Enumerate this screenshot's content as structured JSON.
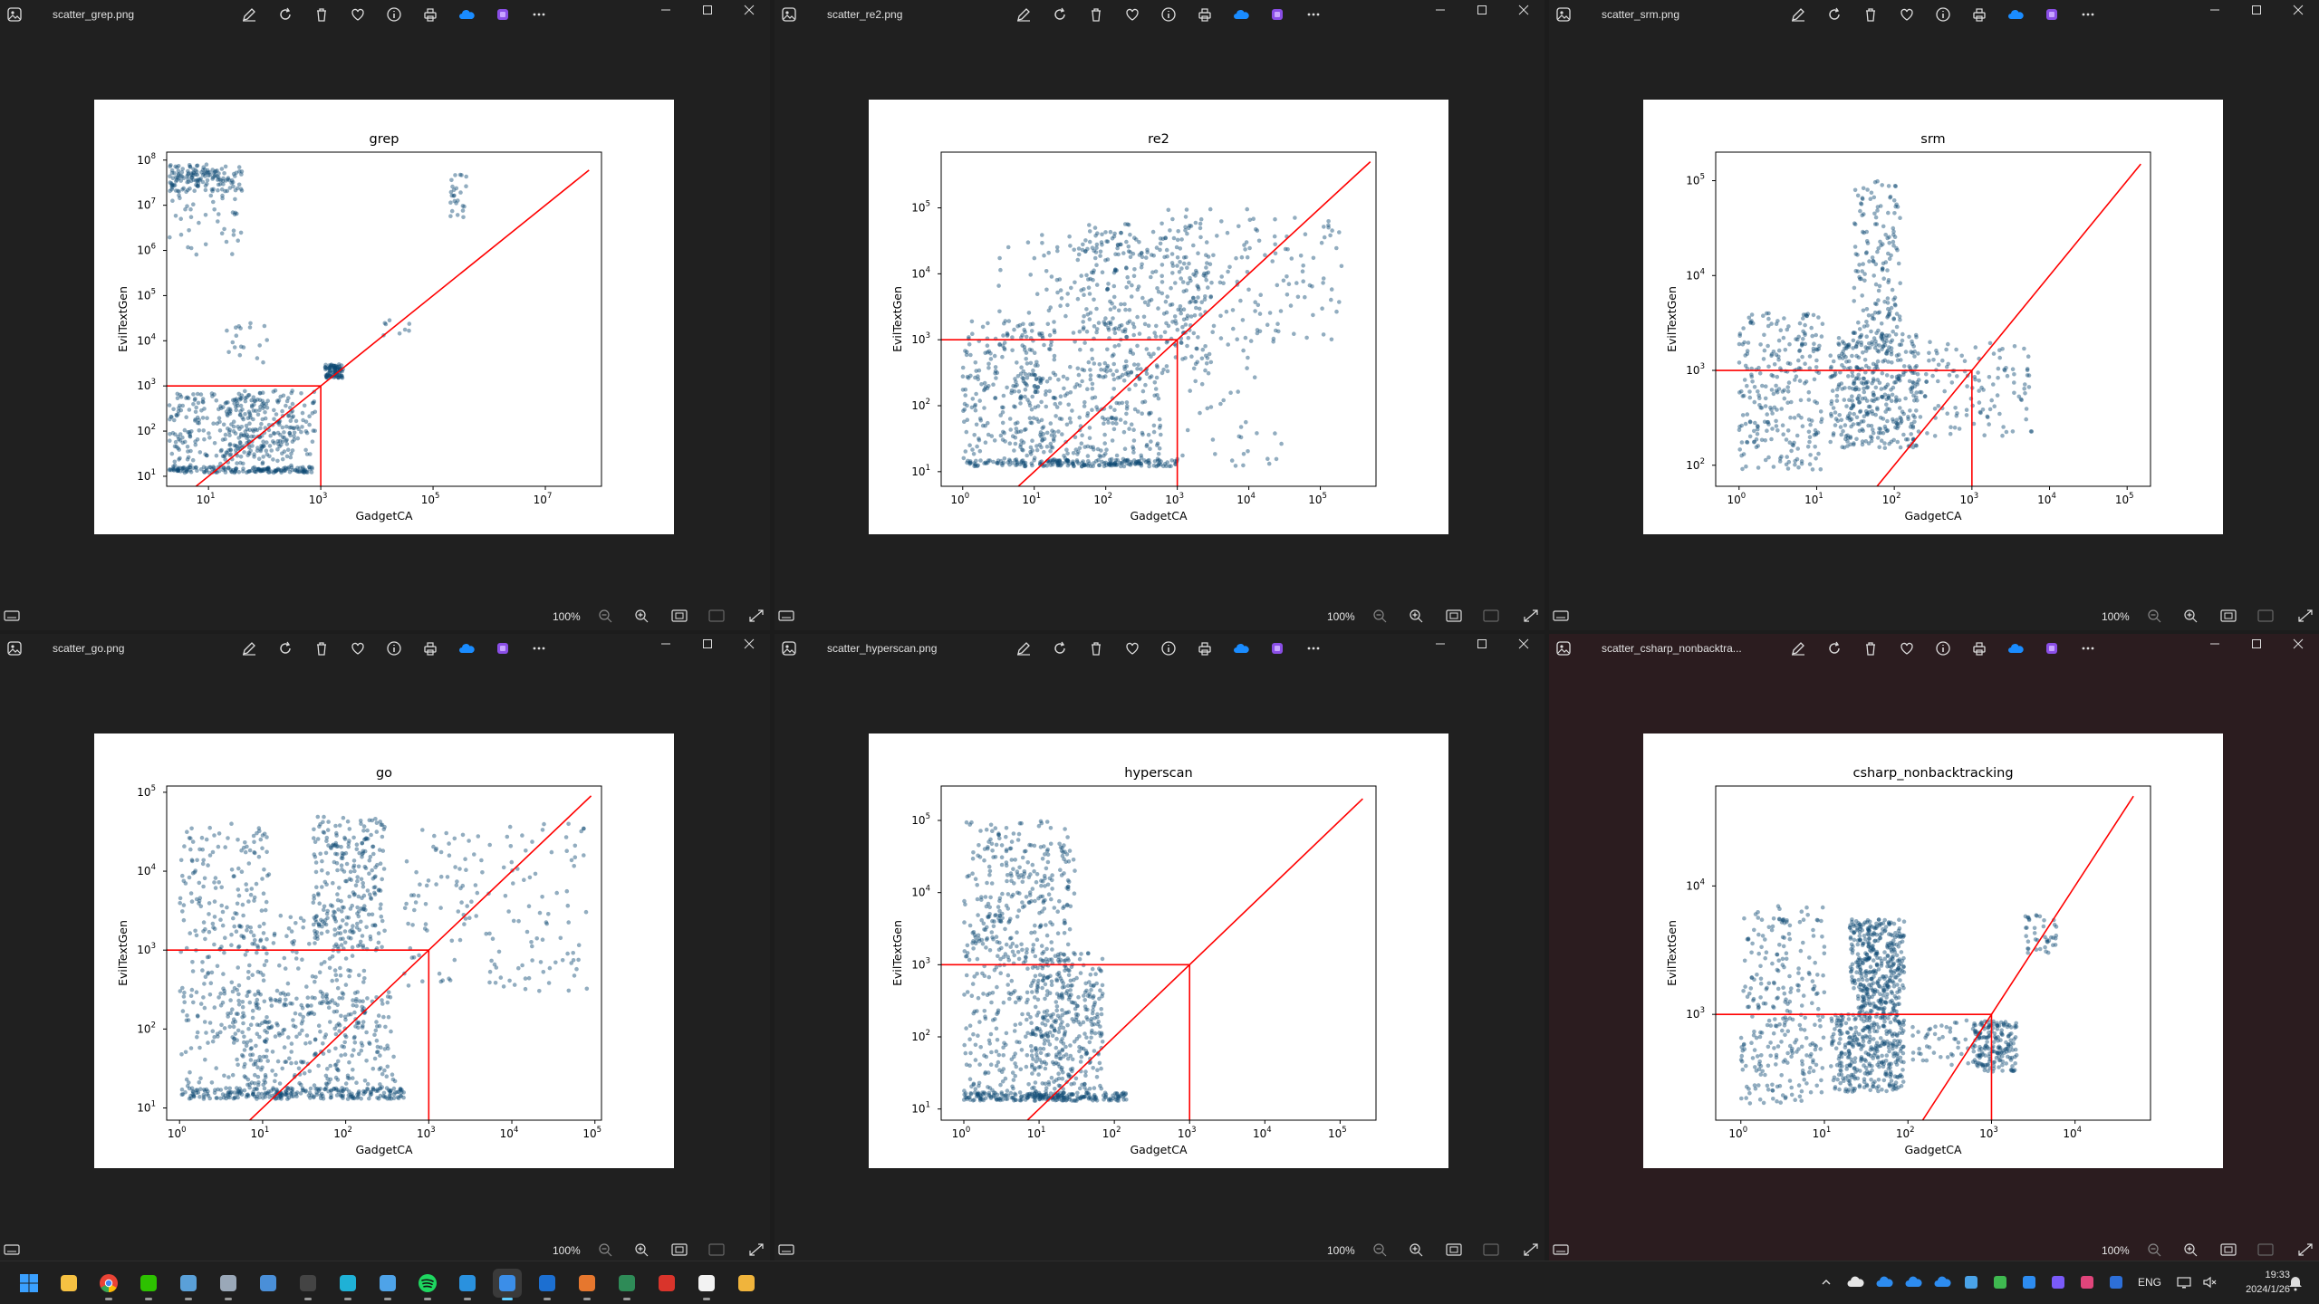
{
  "windows": [
    {
      "file": "scatter_grep.png",
      "zoom": "100%",
      "chart": {
        "type": "scatter",
        "title": "grep",
        "xlabel": "GadgetCA",
        "ylabel": "EvilTextGen",
        "xscale": "log",
        "yscale": "log",
        "xlim": [
          1.8,
          100000000
        ],
        "ylim": [
          6,
          150000000
        ],
        "xticks": [
          {
            "v": 10,
            "e": "1"
          },
          {
            "v": 1000,
            "e": "3"
          },
          {
            "v": 100000,
            "e": "5"
          },
          {
            "v": 10000000,
            "e": "7"
          }
        ],
        "yticks": [
          {
            "v": 10,
            "e": "1"
          },
          {
            "v": 100,
            "e": "2"
          },
          {
            "v": 1000,
            "e": "3"
          },
          {
            "v": 10000,
            "e": "4"
          },
          {
            "v": 100000,
            "e": "5"
          },
          {
            "v": 1000000,
            "e": "6"
          },
          {
            "v": 10000000,
            "e": "7"
          },
          {
            "v": 100000000,
            "e": "8"
          }
        ],
        "diagonal": [
          [
            4,
            4
          ],
          [
            60000000,
            60000000
          ]
        ],
        "threshold": 1000,
        "clusters": [
          {
            "x": [
              2,
              700
            ],
            "y": [
              12,
              16
            ],
            "n": 160
          },
          {
            "x": [
              2,
              300
            ],
            "y": [
              16,
              700
            ],
            "n": 260
          },
          {
            "x": [
              20,
              800
            ],
            "y": [
              30,
              800
            ],
            "n": 140
          },
          {
            "x": [
              2,
              40
            ],
            "y": [
              20000000,
              80000000
            ],
            "n": 150
          },
          {
            "x": [
              2,
              40
            ],
            "y": [
              800000,
              20000000
            ],
            "n": 40
          },
          {
            "x": [
              1200,
              2500
            ],
            "y": [
              1500,
              3000
            ],
            "n": 90
          },
          {
            "x": [
              20,
              150
            ],
            "y": [
              3000,
              30000
            ],
            "n": 18
          },
          {
            "x": [
              200000,
              400000
            ],
            "y": [
              5000000,
              60000000
            ],
            "n": 25
          },
          {
            "x": [
              10000,
              40000
            ],
            "y": [
              10000,
              30000
            ],
            "n": 8
          }
        ]
      }
    },
    {
      "file": "scatter_re2.png",
      "zoom": "100%",
      "chart": {
        "type": "scatter",
        "title": "re2",
        "xlabel": "GadgetCA",
        "ylabel": "EvilTextGen",
        "xscale": "log",
        "yscale": "log",
        "xlim": [
          0.5,
          600000
        ],
        "ylim": [
          6,
          700000
        ],
        "xticks": [
          {
            "v": 1,
            "e": "0"
          },
          {
            "v": 10,
            "e": "1"
          },
          {
            "v": 100,
            "e": "2"
          },
          {
            "v": 1000,
            "e": "3"
          },
          {
            "v": 10000,
            "e": "4"
          },
          {
            "v": 100000,
            "e": "5"
          }
        ],
        "yticks": [
          {
            "v": 10,
            "e": "1"
          },
          {
            "v": 100,
            "e": "2"
          },
          {
            "v": 1000,
            "e": "3"
          },
          {
            "v": 10000,
            "e": "4"
          },
          {
            "v": 100000,
            "e": "5"
          }
        ],
        "diagonal": [
          [
            5,
            5
          ],
          [
            500000,
            500000
          ]
        ],
        "threshold": 1000,
        "clusters": [
          {
            "x": [
              1,
              1000
            ],
            "y": [
              12,
              15
            ],
            "n": 200
          },
          {
            "x": [
              1,
              20
            ],
            "y": [
              15,
              2000
            ],
            "n": 220
          },
          {
            "x": [
              5,
              600
            ],
            "y": [
              15,
              300
            ],
            "n": 220
          },
          {
            "x": [
              40,
              3000
            ],
            "y": [
              300,
              60000
            ],
            "n": 300
          },
          {
            "x": [
              3,
              300
            ],
            "y": [
              200,
              40000
            ],
            "n": 120
          },
          {
            "x": [
              500,
              200000
            ],
            "y": [
              1000,
              100000
            ],
            "n": 150
          },
          {
            "x": [
              1000,
              30000
            ],
            "y": [
              12,
              1000
            ],
            "n": 40
          }
        ]
      }
    },
    {
      "file": "scatter_srm.png",
      "zoom": "100%",
      "chart": {
        "type": "scatter",
        "title": "srm",
        "xlabel": "GadgetCA",
        "ylabel": "EvilTextGen",
        "xscale": "log",
        "yscale": "log",
        "xlim": [
          0.5,
          200000
        ],
        "ylim": [
          60,
          200000
        ],
        "xticks": [
          {
            "v": 1,
            "e": "0"
          },
          {
            "v": 10,
            "e": "1"
          },
          {
            "v": 100,
            "e": "2"
          },
          {
            "v": 1000,
            "e": "3"
          },
          {
            "v": 10000,
            "e": "4"
          },
          {
            "v": 100000,
            "e": "5"
          }
        ],
        "yticks": [
          {
            "v": 100,
            "e": "2"
          },
          {
            "v": 1000,
            "e": "3"
          },
          {
            "v": 10000,
            "e": "4"
          },
          {
            "v": 100000,
            "e": "5"
          }
        ],
        "diagonal": [
          [
            30,
            30
          ],
          [
            150000,
            150000
          ]
        ],
        "threshold": 1000,
        "clusters": [
          {
            "x": [
              1,
              12
            ],
            "y": [
              90,
              4000
            ],
            "n": 260
          },
          {
            "x": [
              15,
              200
            ],
            "y": [
              150,
              2500
            ],
            "n": 400
          },
          {
            "x": [
              30,
              120
            ],
            "y": [
              2000,
              100000
            ],
            "n": 150
          },
          {
            "x": [
              200,
              6000
            ],
            "y": [
              200,
              2000
            ],
            "n": 120
          }
        ]
      }
    },
    {
      "file": "scatter_go.png",
      "zoom": "100%",
      "chart": {
        "type": "scatter",
        "title": "go",
        "xlabel": "GadgetCA",
        "ylabel": "EvilTextGen",
        "xscale": "log",
        "yscale": "log",
        "xlim": [
          0.7,
          120000
        ],
        "ylim": [
          7,
          120000
        ],
        "xticks": [
          {
            "v": 1,
            "e": "0"
          },
          {
            "v": 10,
            "e": "1"
          },
          {
            "v": 100,
            "e": "2"
          },
          {
            "v": 1000,
            "e": "3"
          },
          {
            "v": 10000,
            "e": "4"
          },
          {
            "v": 100000,
            "e": "5"
          }
        ],
        "yticks": [
          {
            "v": 10,
            "e": "1"
          },
          {
            "v": 100,
            "e": "2"
          },
          {
            "v": 1000,
            "e": "3"
          },
          {
            "v": 10000,
            "e": "4"
          },
          {
            "v": 100000,
            "e": "5"
          }
        ],
        "diagonal": [
          [
            5,
            5
          ],
          [
            90000,
            90000
          ]
        ],
        "threshold": 1000,
        "clusters": [
          {
            "x": [
              1,
              500
            ],
            "y": [
              13,
              18
            ],
            "n": 260
          },
          {
            "x": [
              1,
              12
            ],
            "y": [
              15,
              40000
            ],
            "n": 320
          },
          {
            "x": [
              5,
              400
            ],
            "y": [
              18,
              300
            ],
            "n": 260
          },
          {
            "x": [
              40,
              300
            ],
            "y": [
              1000,
              50000
            ],
            "n": 250
          },
          {
            "x": [
              500,
              80000
            ],
            "y": [
              300,
              40000
            ],
            "n": 160
          },
          {
            "x": [
              10,
              200
            ],
            "y": [
              100,
              3000
            ],
            "n": 120
          }
        ]
      }
    },
    {
      "file": "scatter_hyperscan.png",
      "zoom": "100%",
      "chart": {
        "type": "scatter",
        "title": "hyperscan",
        "xlabel": "GadgetCA",
        "ylabel": "EvilTextGen",
        "xscale": "log",
        "yscale": "log",
        "xlim": [
          0.5,
          300000
        ],
        "ylim": [
          7,
          300000
        ],
        "xticks": [
          {
            "v": 1,
            "e": "0"
          },
          {
            "v": 10,
            "e": "1"
          },
          {
            "v": 100,
            "e": "2"
          },
          {
            "v": 1000,
            "e": "3"
          },
          {
            "v": 10000,
            "e": "4"
          },
          {
            "v": 100000,
            "e": "5"
          }
        ],
        "yticks": [
          {
            "v": 10,
            "e": "1"
          },
          {
            "v": 100,
            "e": "2"
          },
          {
            "v": 1000,
            "e": "3"
          },
          {
            "v": 10000,
            "e": "4"
          },
          {
            "v": 100000,
            "e": "5"
          }
        ],
        "diagonal": [
          [
            5,
            5
          ],
          [
            200000,
            200000
          ]
        ],
        "threshold": 1000,
        "clusters": [
          {
            "x": [
              1,
              150
            ],
            "y": [
              13,
              17
            ],
            "n": 220
          },
          {
            "x": [
              1,
              25
            ],
            "y": [
              15,
              100000
            ],
            "n": 450
          },
          {
            "x": [
              8,
              70
            ],
            "y": [
              15,
              1500
            ],
            "n": 300
          },
          {
            "x": [
              2,
              30
            ],
            "y": [
              1000,
              50000
            ],
            "n": 80
          }
        ]
      }
    },
    {
      "file": "scatter_csharp_nonbacktra...",
      "zoom": "100%",
      "chart": {
        "type": "scatter",
        "title": "csharp_nonbacktracking",
        "xlabel": "GadgetCA",
        "ylabel": "EvilTextGen",
        "xscale": "log",
        "yscale": "log",
        "xlim": [
          0.5,
          80000
        ],
        "ylim": [
          150,
          60000
        ],
        "xticks": [
          {
            "v": 1,
            "e": "0"
          },
          {
            "v": 10,
            "e": "1"
          },
          {
            "v": 100,
            "e": "2"
          },
          {
            "v": 1000,
            "e": "3"
          },
          {
            "v": 10000,
            "e": "4"
          }
        ],
        "yticks": [
          {
            "v": 1000,
            "e": "3"
          },
          {
            "v": 10000,
            "e": "4"
          }
        ],
        "diagonal": [
          [
            150,
            150
          ],
          [
            50000,
            50000
          ]
        ],
        "threshold": 1000,
        "clusters": [
          {
            "x": [
              1,
              10
            ],
            "y": [
              200,
              7000
            ],
            "n": 280
          },
          {
            "x": [
              12,
              90
            ],
            "y": [
              250,
              1000
            ],
            "n": 350
          },
          {
            "x": [
              20,
              90
            ],
            "y": [
              1600,
              5500
            ],
            "n": 300
          },
          {
            "x": [
              25,
              80
            ],
            "y": [
              1000,
              1600
            ],
            "n": 100
          },
          {
            "x": [
              600,
              2000
            ],
            "y": [
              350,
              900
            ],
            "n": 180
          },
          {
            "x": [
              2500,
              6000
            ],
            "y": [
              3000,
              6000
            ],
            "n": 40
          },
          {
            "x": [
              100,
              800
            ],
            "y": [
              400,
              900
            ],
            "n": 50
          }
        ]
      }
    }
  ],
  "colors": {
    "points": "#0d4a73",
    "lines": "#ff0000",
    "window_bg": "#202020",
    "active_window_bg": "#2b1c1f",
    "taskbar_bg": "#1f1f1f"
  },
  "toolbar_icons": [
    "edit-icon",
    "rotate-icon",
    "delete-icon",
    "favorite-icon",
    "info-icon",
    "print-icon",
    "onedrive-icon",
    "clipchamp-icon",
    "more-icon"
  ],
  "taskbar": {
    "apps": [
      "windows-start-icon",
      "file-explorer-icon",
      "chrome-icon",
      "wechat-icon",
      "task-manager-icon",
      "database-icon",
      "remote-desktop-icon",
      "terminal-icon",
      "edge-dev-icon",
      "notepad-icon",
      "spotify-icon",
      "vscode-icon",
      "photos-icon",
      "outlook-icon",
      "matlab-icon",
      "terminal-green-icon",
      "adobe-icon",
      "typora-icon",
      "paint-icon"
    ],
    "lang": "ENG",
    "time": "19:33",
    "date": "2024/1/26"
  }
}
